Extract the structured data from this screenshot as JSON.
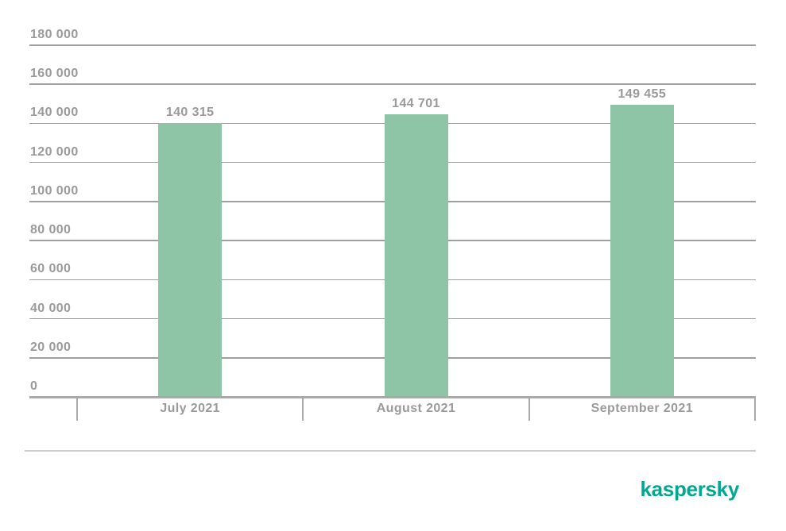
{
  "chart_data": {
    "type": "bar",
    "title": "",
    "xlabel": "",
    "ylabel": "",
    "categories": [
      "July 2021",
      "August 2021",
      "September 2021"
    ],
    "values": [
      140315,
      144701,
      149455
    ],
    "value_labels": [
      "140 315",
      "144 701",
      "149 455"
    ],
    "ylim": [
      0,
      180000
    ],
    "ytick_step": 20000,
    "yticks": [
      {
        "value": 0,
        "label": "0"
      },
      {
        "value": 20000,
        "label": "20 000"
      },
      {
        "value": 40000,
        "label": "40 000"
      },
      {
        "value": 60000,
        "label": "60 000"
      },
      {
        "value": 80000,
        "label": "80 000"
      },
      {
        "value": 100000,
        "label": "100 000"
      },
      {
        "value": 120000,
        "label": "120 000"
      },
      {
        "value": 140000,
        "label": "140 000"
      },
      {
        "value": 160000,
        "label": "160 000"
      },
      {
        "value": 180000,
        "label": "180 000"
      }
    ],
    "grid": true,
    "legend_position": "none",
    "bar_color": "#8dc5a6"
  },
  "colors": {
    "background": "#ffffff",
    "text": "#9a9a9a",
    "gridline": "#9f9f9f",
    "axis": "#a9a9a9",
    "separator": "#cbcbcb",
    "bar": "#8dc5a6",
    "logo": "#00a88e"
  },
  "footer": {
    "logo_text": "kaspersky"
  }
}
